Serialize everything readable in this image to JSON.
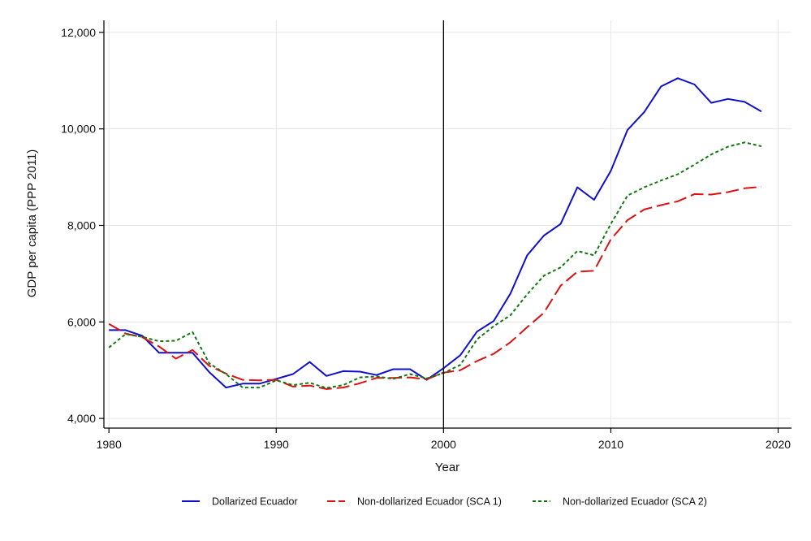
{
  "chart_data": {
    "type": "line",
    "title": "",
    "xlabel": "Year",
    "ylabel": "GDP per capita (PPP 2011)",
    "xlim": [
      1979.7,
      2020.8
    ],
    "ylim": [
      3800,
      12250
    ],
    "x_ticks": [
      1980,
      1990,
      2000,
      2010,
      2020
    ],
    "x_tick_labels": [
      "1980",
      "1990",
      "2000",
      "2010",
      "2020"
    ],
    "y_ticks": [
      4000,
      6000,
      8000,
      10000,
      12000
    ],
    "y_tick_labels": [
      "4,000",
      "6,000",
      "8,000",
      "10,000",
      "12,000"
    ],
    "grid": true,
    "reference_line_x": 2000,
    "legend_position": "bottom",
    "x": [
      1980,
      1981,
      1982,
      1983,
      1984,
      1985,
      1986,
      1987,
      1988,
      1989,
      1990,
      1991,
      1992,
      1993,
      1994,
      1995,
      1996,
      1997,
      1998,
      1999,
      2000,
      2001,
      2002,
      2003,
      2004,
      2005,
      2006,
      2007,
      2008,
      2009,
      2010,
      2011,
      2012,
      2013,
      2014,
      2015,
      2016,
      2017,
      2018,
      2019
    ],
    "series": [
      {
        "name": "Dollarized Ecuador",
        "color": "#1010cc",
        "dash": "solid",
        "values": [
          5830,
          5830,
          5710,
          5360,
          5360,
          5360,
          4960,
          4640,
          4720,
          4720,
          4820,
          4920,
          5170,
          4880,
          4980,
          4970,
          4900,
          5020,
          5020,
          4800,
          5040,
          5310,
          5800,
          6020,
          6590,
          7380,
          7790,
          8030,
          8790,
          8530,
          9130,
          9980,
          10350,
          10880,
          11050,
          10920,
          10540,
          10620,
          10560,
          10360
        ]
      },
      {
        "name": "Non-dollarized Ecuador (SCA 1)",
        "color": "#dd1111",
        "dash": "long",
        "values": [
          5960,
          5760,
          5680,
          5490,
          5240,
          5420,
          5090,
          4930,
          4800,
          4790,
          4800,
          4660,
          4680,
          4610,
          4640,
          4730,
          4840,
          4840,
          4850,
          4810,
          4950,
          5000,
          5190,
          5340,
          5580,
          5890,
          6190,
          6750,
          7040,
          7060,
          7710,
          8110,
          8330,
          8420,
          8500,
          8650,
          8640,
          8690,
          8770,
          8800
        ]
      },
      {
        "name": "Non-dollarized Ecuador (SCA 2)",
        "color": "#117711",
        "dash": "short",
        "values": [
          5470,
          5750,
          5690,
          5600,
          5610,
          5790,
          5140,
          4920,
          4640,
          4640,
          4790,
          4690,
          4740,
          4630,
          4690,
          4850,
          4870,
          4820,
          4920,
          4830,
          4940,
          5110,
          5640,
          5910,
          6140,
          6570,
          6960,
          7130,
          7470,
          7380,
          8030,
          8620,
          8790,
          8930,
          9060,
          9260,
          9470,
          9630,
          9720,
          9640
        ]
      }
    ]
  }
}
